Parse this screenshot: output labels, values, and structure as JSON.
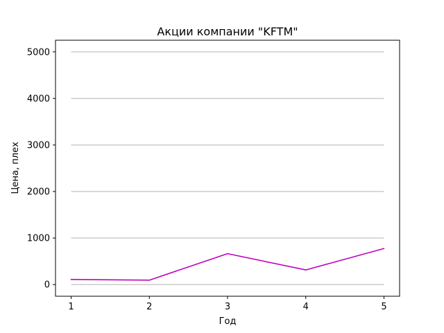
{
  "chart_data": {
    "type": "line",
    "title": "Акции компании \"KFTM\"",
    "xlabel": "Год",
    "ylabel": "Цена, плех",
    "x": [
      1,
      2,
      3,
      4,
      5
    ],
    "series": [
      {
        "values": [
          110,
          95,
          665,
          315,
          775
        ],
        "color": "#bf00bf"
      }
    ],
    "xlim": [
      0.8,
      5.2
    ],
    "ylim": [
      -250,
      5250
    ],
    "xticks": [
      "1",
      "2",
      "3",
      "4",
      "5"
    ],
    "yticks": [
      "0",
      "1000",
      "2000",
      "3000",
      "4000",
      "5000"
    ],
    "grid": {
      "axis": "y",
      "color": "#cccccc"
    },
    "legend": "none"
  }
}
